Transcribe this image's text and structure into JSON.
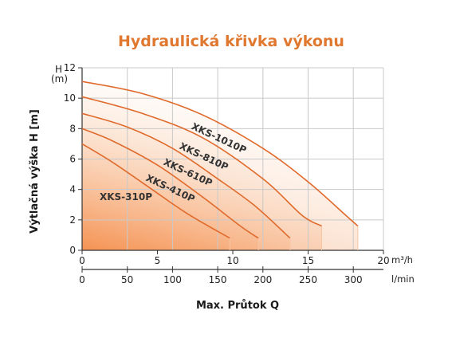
{
  "chart_data": {
    "type": "line",
    "title": "Hydraulická křivka výkonu",
    "xlabel": "Max. Průtok Q",
    "ylabel": "Výtlačná výška H [m]",
    "y_axis_top_label": "H",
    "y_axis_unit_label": "(m)",
    "x_unit_primary": "m³/h",
    "x_unit_secondary": "l/min",
    "xlim": [
      0,
      20
    ],
    "ylim": [
      0,
      12
    ],
    "x_ticks_primary": [
      "0",
      "5",
      "10",
      "15",
      "20"
    ],
    "x_ticks_secondary": [
      "0",
      "50",
      "100",
      "150",
      "200",
      "250",
      "300"
    ],
    "x_ticks_secondary_values": [
      0,
      50,
      100,
      150,
      200,
      250,
      300
    ],
    "y_ticks": [
      "0",
      "2",
      "4",
      "6",
      "8",
      "10",
      "12"
    ],
    "grid": true,
    "colors": {
      "title": "#e0782f",
      "curve": "#e06a2c",
      "fill": "#f4823c",
      "grid": "#c9c9c9"
    },
    "series": [
      {
        "name": "XKS-1010P",
        "x": [
          0,
          4,
          8,
          12,
          15,
          17.5,
          18.3
        ],
        "y": [
          11.1,
          10.3,
          8.9,
          6.7,
          4.5,
          2.3,
          1.6
        ]
      },
      {
        "name": "XKS-810P",
        "x": [
          0,
          4,
          8,
          12,
          14.6,
          15.9
        ],
        "y": [
          10.1,
          9.0,
          7.4,
          4.7,
          2.3,
          1.6
        ]
      },
      {
        "name": "XKS-610P",
        "x": [
          0,
          3,
          6,
          9,
          11.5,
          13.8
        ],
        "y": [
          9.0,
          8.1,
          6.7,
          4.7,
          2.9,
          0.8
        ]
      },
      {
        "name": "XKS-410P",
        "x": [
          0,
          2,
          5,
          8,
          10.5,
          11.7
        ],
        "y": [
          8.0,
          7.2,
          5.6,
          3.5,
          1.6,
          0.8
        ]
      },
      {
        "name": "XKS-310P",
        "x": [
          0,
          2,
          4.5,
          7,
          9.8
        ],
        "y": [
          7.0,
          5.8,
          4.1,
          2.4,
          0.8
        ]
      }
    ]
  }
}
